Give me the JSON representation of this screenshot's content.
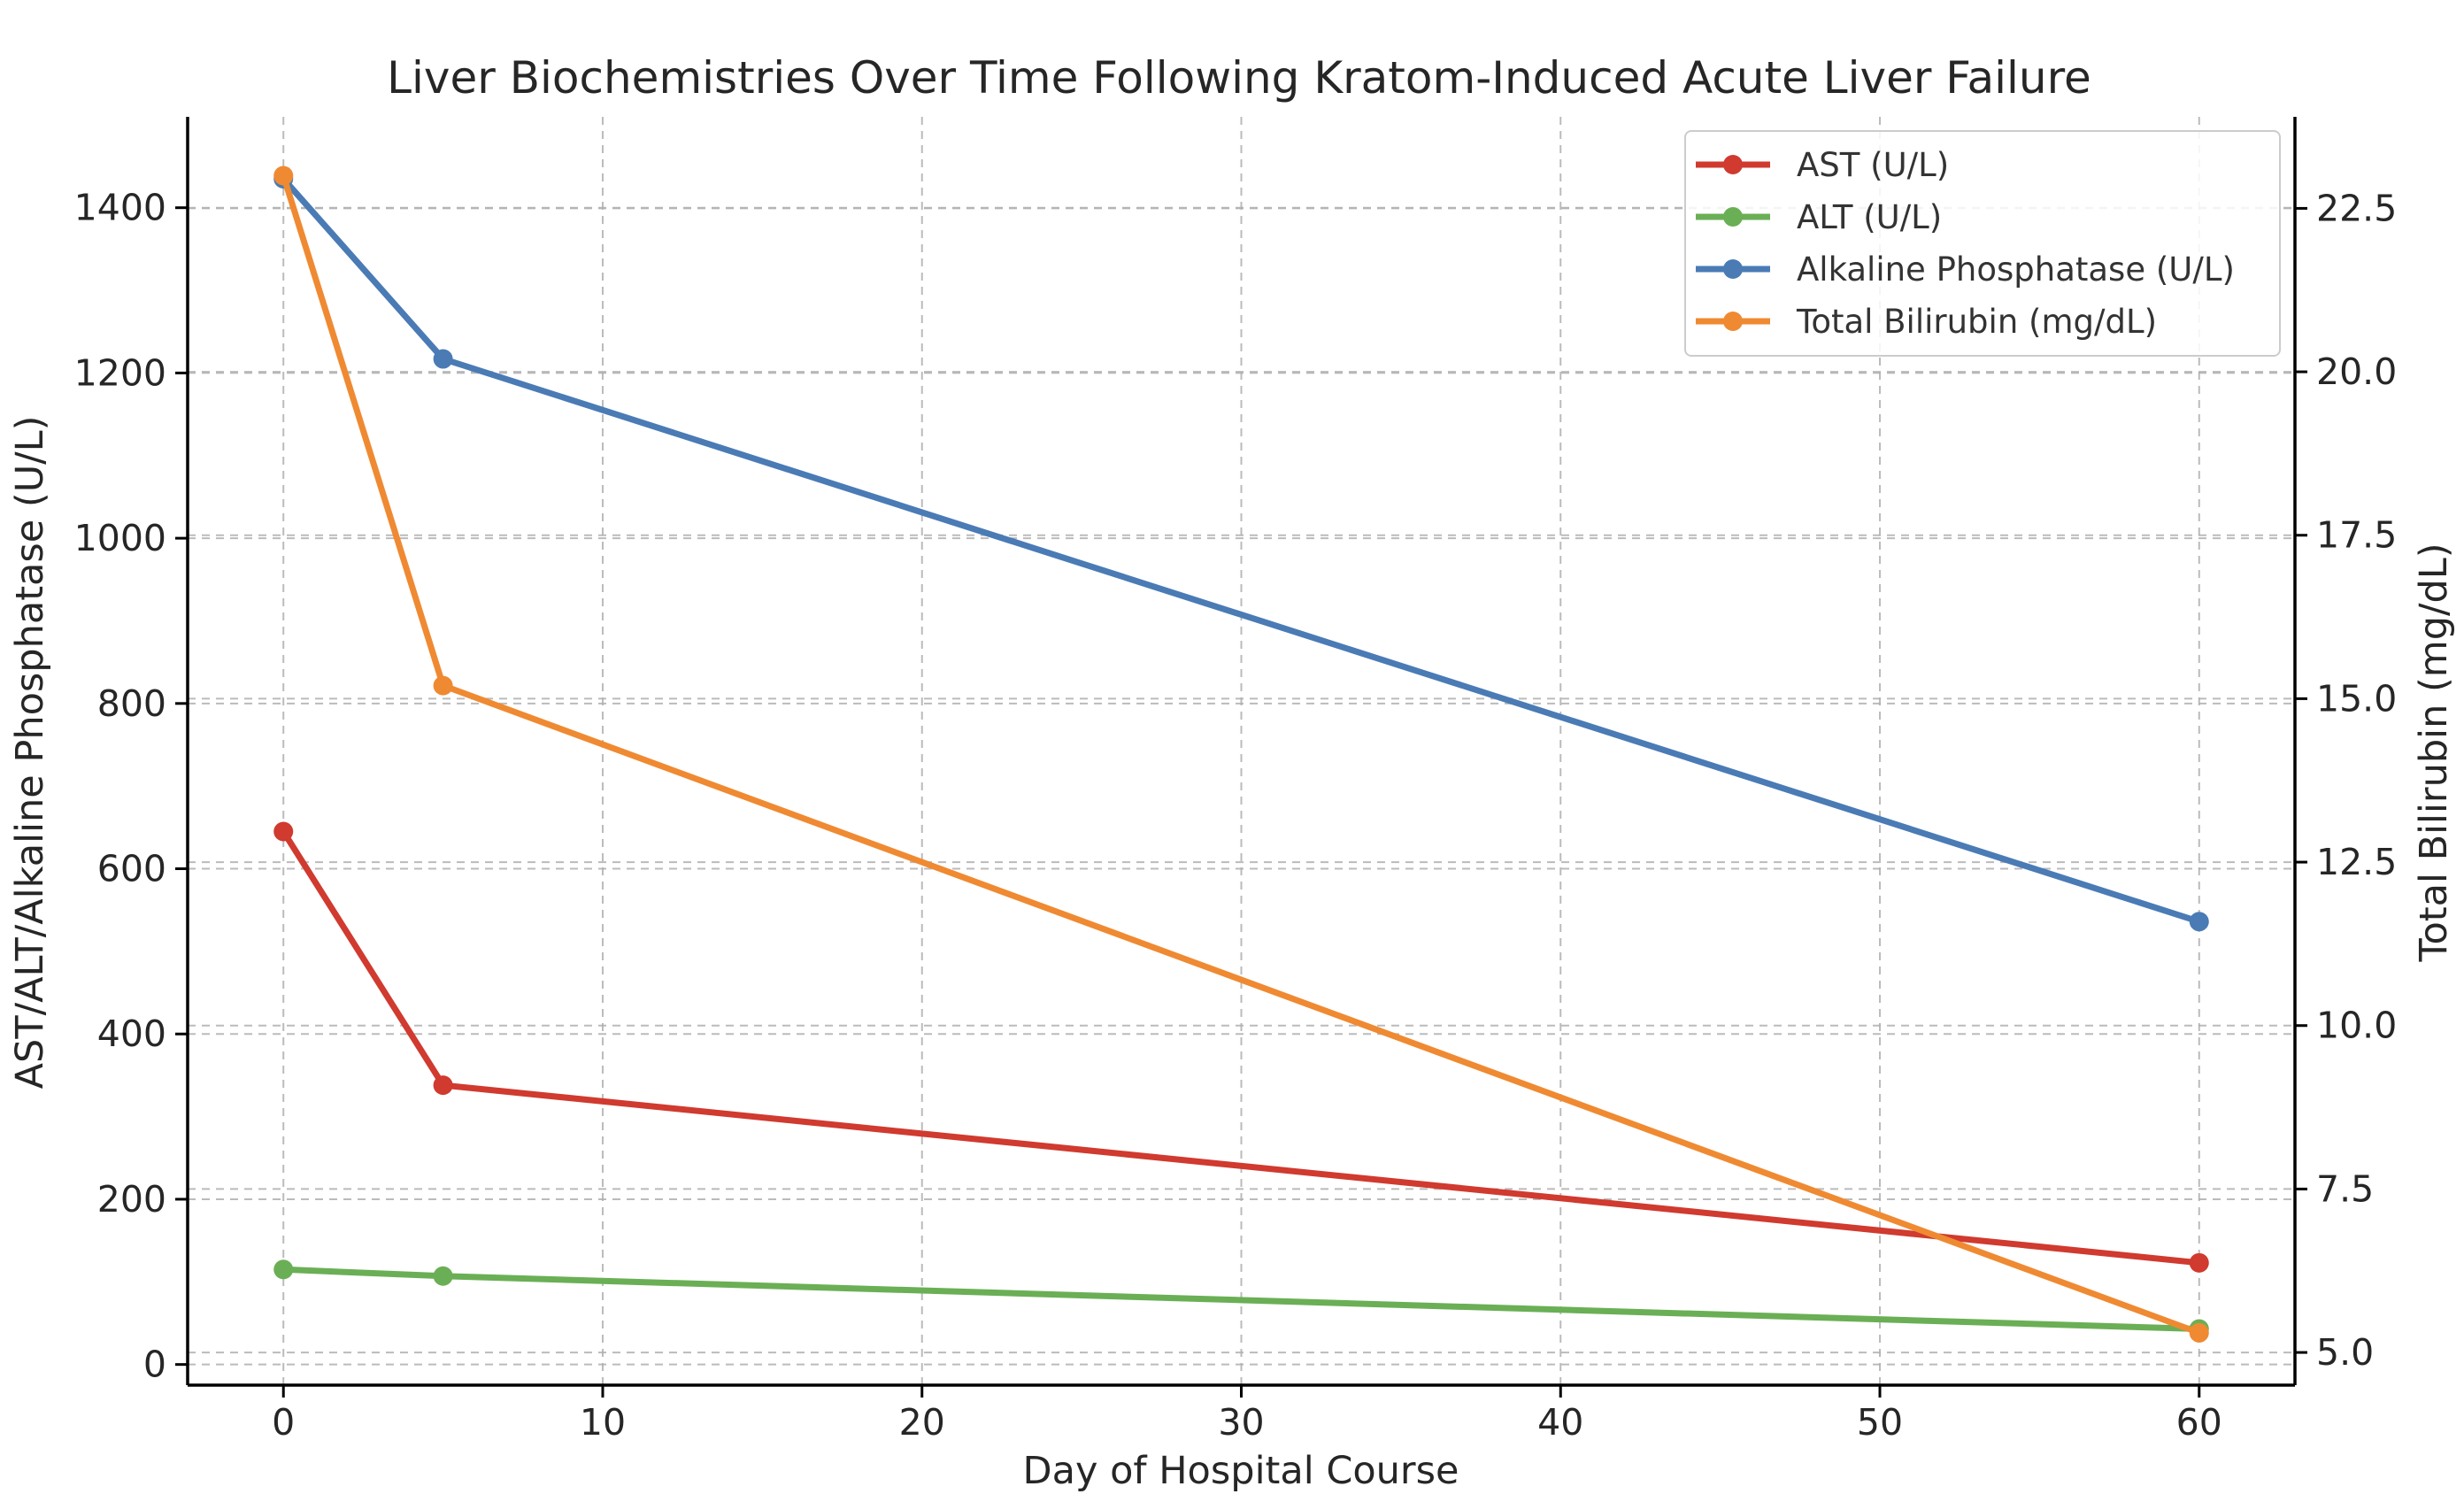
{
  "chart_data": {
    "type": "line",
    "title": "Liver Biochemistries Over Time Following Kratom-Induced Acute Liver Failure",
    "xlabel": "Day of Hospital Course",
    "ylabel": "AST/ALT/Alkaline Phosphatase (U/L)",
    "y2label": "Total Bilirubin (mg/dL)",
    "xlim": [
      -3,
      63
    ],
    "ylim": [
      -25,
      1510
    ],
    "y2lim": [
      4.5,
      23.9
    ],
    "xticks": [
      0,
      10,
      20,
      30,
      40,
      50,
      60
    ],
    "yticks": [
      0,
      200,
      400,
      600,
      800,
      1000,
      1200,
      1400
    ],
    "y2ticks": [
      "5.0",
      "7.5",
      "10.0",
      "12.5",
      "15.0",
      "17.5",
      "20.0",
      "22.5"
    ],
    "grid": true,
    "legend_position": "top-right",
    "series": [
      {
        "name": "AST (U/L)",
        "axis": "left",
        "color": "#d03a2f",
        "x": [
          0,
          5,
          60
        ],
        "values": [
          645,
          338,
          123
        ]
      },
      {
        "name": "ALT (U/L)",
        "axis": "left",
        "color": "#6aaf55",
        "x": [
          0,
          5,
          60
        ],
        "values": [
          115,
          107,
          43
        ]
      },
      {
        "name": "Alkaline Phosphatase (U/L)",
        "axis": "left",
        "color": "#4a7bb5",
        "x": [
          0,
          5,
          60
        ],
        "values": [
          1435,
          1217,
          536
        ]
      },
      {
        "name": "Total Bilirubin (mg/dL)",
        "axis": "right",
        "color": "#ef8a32",
        "x": [
          0,
          5,
          60
        ],
        "values": [
          23.0,
          15.2,
          5.3
        ]
      }
    ]
  }
}
